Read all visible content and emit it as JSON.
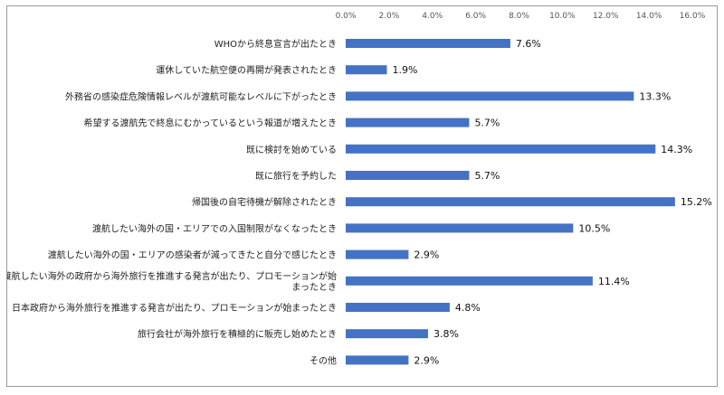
{
  "chart_data": {
    "type": "bar",
    "orientation": "horizontal",
    "title": "",
    "xlabel": "",
    "ylabel": "",
    "xlim": [
      0,
      16
    ],
    "ticks": [
      0,
      2,
      4,
      6,
      8,
      10,
      12,
      14,
      16
    ],
    "tick_labels": [
      "0.0%",
      "2.0%",
      "4.0%",
      "6.0%",
      "8.0%",
      "10.0%",
      "12.0%",
      "14.0%",
      "16.0%"
    ],
    "grid": false,
    "legend": "none",
    "bar_color": "#4472c4",
    "categories": [
      [
        "WHOから終息宣言が出たとき"
      ],
      [
        "運休していた航空便の再開が発表されたとき"
      ],
      [
        "外務省の感染症危険情報レベルが渡航可能なレベルに下がったとき"
      ],
      [
        "希望する渡航先で終息にむかっているという報道が増えたとき"
      ],
      [
        "既に検討を始めている"
      ],
      [
        "既に旅行を予約した"
      ],
      [
        "帰国後の自宅待機が解除されたとき"
      ],
      [
        "渡航したい海外の国・エリアでの入国制限がなくなったとき"
      ],
      [
        "渡航したい海外の国・エリアの感染者が減ってきたと自分で感じたとき"
      ],
      [
        "渡航したい海外の政府から海外旅行を推進する発言が出たり、プロモーションが始",
        "まったとき"
      ],
      [
        "日本政府から海外旅行を推進する発言が出たり、プロモーションが始まったとき"
      ],
      [
        "旅行会社が海外旅行を積極的に販売し始めたとき"
      ],
      [
        "その他"
      ]
    ],
    "values": [
      7.6,
      1.9,
      13.3,
      5.7,
      14.3,
      5.7,
      15.2,
      10.5,
      2.9,
      11.4,
      4.8,
      3.8,
      2.9
    ],
    "value_labels": [
      "7.6%",
      "1.9%",
      "13.3%",
      "5.7%",
      "14.3%",
      "5.7%",
      "15.2%",
      "10.5%",
      "2.9%",
      "11.4%",
      "4.8%",
      "3.8%",
      "2.9%"
    ]
  }
}
